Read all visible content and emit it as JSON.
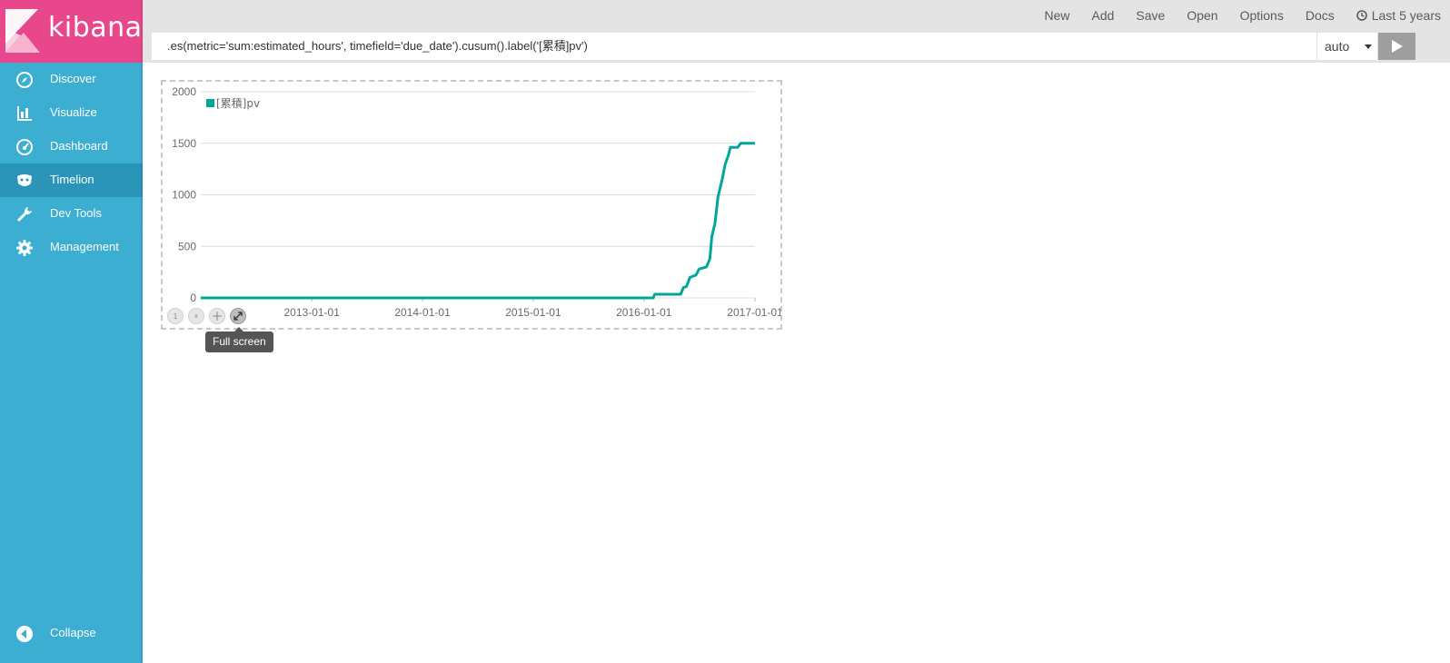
{
  "app": {
    "name": "kibana"
  },
  "sidebar": {
    "items": [
      {
        "label": "Discover",
        "icon": "compass-icon"
      },
      {
        "label": "Visualize",
        "icon": "bar-chart-icon"
      },
      {
        "label": "Dashboard",
        "icon": "gauge-icon"
      },
      {
        "label": "Timelion",
        "icon": "timelion-icon",
        "active": true
      },
      {
        "label": "Dev Tools",
        "icon": "wrench-icon"
      },
      {
        "label": "Management",
        "icon": "gear-icon"
      }
    ],
    "collapse_label": "Collapse"
  },
  "topnav": {
    "items": [
      "New",
      "Add",
      "Save",
      "Open",
      "Options",
      "Docs"
    ],
    "time_label": "Last 5 years"
  },
  "query": {
    "expression": ".es(metric='sum:estimated_hours', timefield='due_date').cusum().label('[累積]pv')",
    "interval": "auto"
  },
  "panel": {
    "buttons": [
      "1",
      "×",
      "move",
      "fullscreen"
    ],
    "tooltip": "Full screen"
  },
  "chart_data": {
    "type": "line",
    "title": "",
    "xlabel": "",
    "ylabel": "",
    "ylim": [
      0,
      2000
    ],
    "yticks": [
      0,
      500,
      1000,
      1500,
      2000
    ],
    "xlim": [
      "2012-01-01",
      "2017-01-01"
    ],
    "xticks": [
      "2013-01-01",
      "2014-01-01",
      "2015-01-01",
      "2016-01-01",
      "2017-01-01"
    ],
    "legend": "top-left",
    "grid": true,
    "color": "#00a69b",
    "series": [
      {
        "name": "[累積]pv",
        "points": [
          [
            "2012-01-01",
            0
          ],
          [
            "2016-02-01",
            0
          ],
          [
            "2016-02-05",
            35
          ],
          [
            "2016-05-01",
            35
          ],
          [
            "2016-05-10",
            100
          ],
          [
            "2016-05-20",
            110
          ],
          [
            "2016-06-01",
            200
          ],
          [
            "2016-06-20",
            220
          ],
          [
            "2016-07-01",
            280
          ],
          [
            "2016-07-25",
            300
          ],
          [
            "2016-08-05",
            380
          ],
          [
            "2016-08-12",
            600
          ],
          [
            "2016-08-22",
            720
          ],
          [
            "2016-09-01",
            980
          ],
          [
            "2016-09-15",
            1150
          ],
          [
            "2016-09-25",
            1300
          ],
          [
            "2016-10-05",
            1380
          ],
          [
            "2016-10-12",
            1460
          ],
          [
            "2016-11-05",
            1460
          ],
          [
            "2016-11-15",
            1500
          ],
          [
            "2017-01-01",
            1500
          ]
        ]
      }
    ]
  }
}
